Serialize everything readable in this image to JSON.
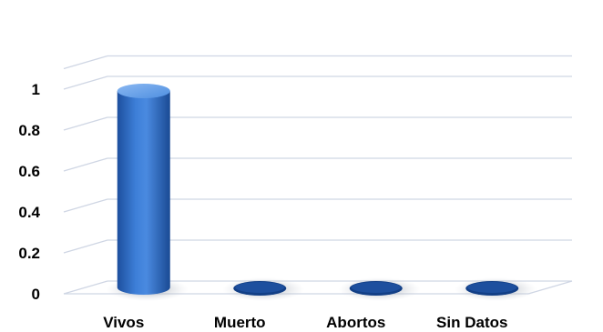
{
  "chart_data": {
    "type": "bar",
    "style": "3d-cylinder",
    "categories": [
      "Vivos",
      "Muerto",
      "Abortos",
      "Sin Datos"
    ],
    "values": [
      1,
      0,
      0,
      0
    ],
    "title": "",
    "xlabel": "",
    "ylabel": "",
    "ylim": [
      0,
      1.1
    ],
    "yticks": [
      0,
      0.2,
      0.4,
      0.6,
      0.8,
      1
    ],
    "ytick_labels": [
      "0",
      "0.2",
      "0.4",
      "0.6",
      "0.8",
      "1"
    ],
    "grid": true,
    "legend": "none",
    "colors": {
      "bar": "#2e6fc9",
      "bar_dark": "#123f86",
      "bar_light": "#7fb0ef",
      "grid": "#cfd6e4",
      "shadow": "#9aa3b0"
    }
  }
}
